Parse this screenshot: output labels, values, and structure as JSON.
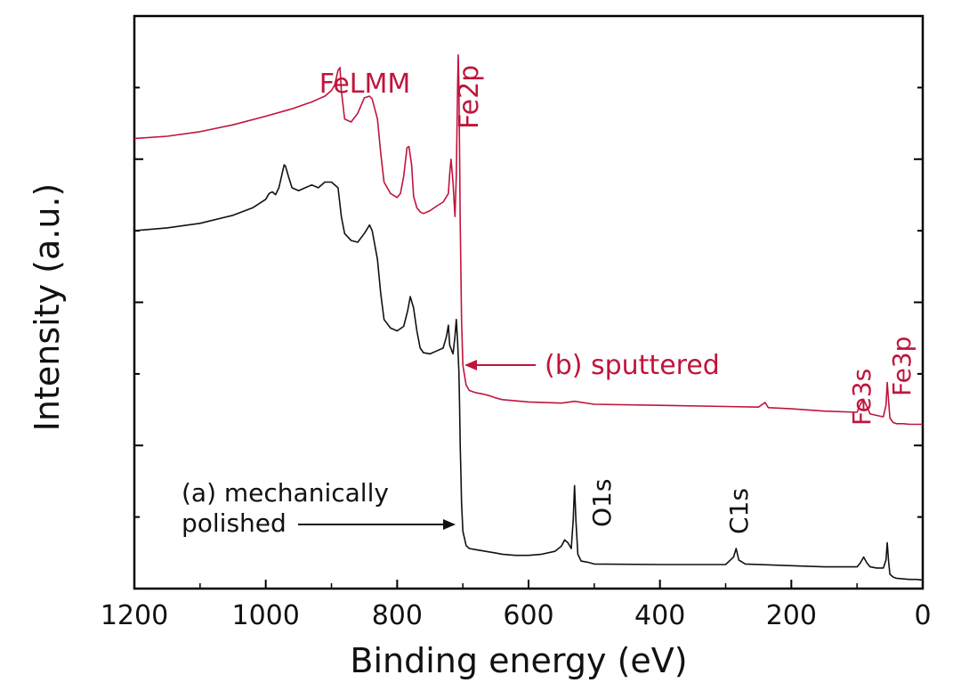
{
  "chart_data": {
    "type": "line",
    "title": "",
    "xlabel": "Binding energy (eV)",
    "ylabel": "Intensity (a.u.)",
    "xlim": [
      1200,
      0
    ],
    "ylim": [
      0,
      1
    ],
    "x_reversed": true,
    "x_ticks": [
      1200,
      1000,
      800,
      600,
      400,
      200,
      0
    ],
    "y_tick_labels_shown": false,
    "grid": false,
    "series": [
      {
        "name": "(b) sputtered",
        "color": "#c0143c",
        "x": [
          1200,
          1150,
          1100,
          1050,
          1000,
          960,
          940,
          930,
          920,
          910,
          900,
          895,
          890,
          887,
          885,
          880,
          870,
          860,
          850,
          842,
          838,
          830,
          825,
          820,
          810,
          800,
          795,
          790,
          785,
          782,
          778,
          775,
          770,
          765,
          760,
          750,
          740,
          730,
          722,
          720,
          718,
          715,
          712,
          710,
          708,
          707,
          706,
          705,
          704,
          702,
          700,
          695,
          690,
          680,
          670,
          660,
          650,
          640,
          600,
          550,
          530,
          500,
          400,
          300,
          250,
          240,
          235,
          200,
          150,
          100,
          95,
          90,
          85,
          80,
          60,
          56,
          54,
          52,
          50,
          45,
          40,
          30,
          20,
          10,
          0
        ],
        "y": [
          0.786,
          0.79,
          0.798,
          0.81,
          0.825,
          0.838,
          0.846,
          0.85,
          0.855,
          0.86,
          0.87,
          0.88,
          0.905,
          0.91,
          0.87,
          0.82,
          0.815,
          0.83,
          0.857,
          0.86,
          0.855,
          0.82,
          0.76,
          0.71,
          0.69,
          0.683,
          0.69,
          0.72,
          0.77,
          0.772,
          0.74,
          0.685,
          0.665,
          0.658,
          0.655,
          0.66,
          0.668,
          0.675,
          0.69,
          0.725,
          0.75,
          0.71,
          0.65,
          0.72,
          0.88,
          0.932,
          0.88,
          0.76,
          0.64,
          0.47,
          0.39,
          0.355,
          0.346,
          0.342,
          0.34,
          0.337,
          0.333,
          0.33,
          0.326,
          0.324,
          0.327,
          0.322,
          0.32,
          0.318,
          0.317,
          0.325,
          0.316,
          0.314,
          0.31,
          0.308,
          0.322,
          0.33,
          0.318,
          0.305,
          0.3,
          0.32,
          0.36,
          0.328,
          0.298,
          0.29,
          0.288,
          0.288,
          0.287,
          0.287,
          0.287
        ]
      },
      {
        "name": "(a) mechanically polished",
        "color": "#111111",
        "x": [
          1200,
          1150,
          1100,
          1050,
          1020,
          1000,
          995,
          990,
          985,
          980,
          975,
          972,
          970,
          965,
          960,
          950,
          940,
          930,
          920,
          910,
          900,
          890,
          885,
          880,
          870,
          860,
          850,
          842,
          838,
          830,
          825,
          820,
          810,
          800,
          790,
          784,
          780,
          775,
          770,
          765,
          760,
          750,
          740,
          730,
          725,
          722,
          720,
          715,
          712,
          710,
          708,
          706,
          705,
          704,
          703,
          702,
          700,
          695,
          690,
          680,
          670,
          660,
          650,
          640,
          620,
          600,
          580,
          560,
          550,
          545,
          540,
          535,
          532,
          530,
          528,
          525,
          520,
          510,
          500,
          400,
          300,
          288,
          284,
          280,
          270,
          200,
          150,
          100,
          95,
          90,
          85,
          80,
          70,
          60,
          56,
          54,
          52,
          50,
          45,
          40,
          30,
          20,
          10,
          0
        ],
        "y": [
          0.625,
          0.63,
          0.638,
          0.652,
          0.665,
          0.68,
          0.69,
          0.693,
          0.688,
          0.7,
          0.725,
          0.74,
          0.738,
          0.718,
          0.7,
          0.695,
          0.7,
          0.705,
          0.7,
          0.71,
          0.71,
          0.7,
          0.65,
          0.62,
          0.608,
          0.605,
          0.62,
          0.635,
          0.625,
          0.575,
          0.515,
          0.47,
          0.455,
          0.45,
          0.458,
          0.485,
          0.51,
          0.49,
          0.45,
          0.42,
          0.412,
          0.41,
          0.415,
          0.42,
          0.44,
          0.46,
          0.425,
          0.41,
          0.44,
          0.47,
          0.43,
          0.38,
          0.32,
          0.25,
          0.2,
          0.15,
          0.1,
          0.075,
          0.07,
          0.068,
          0.066,
          0.064,
          0.062,
          0.06,
          0.058,
          0.058,
          0.06,
          0.065,
          0.074,
          0.085,
          0.08,
          0.07,
          0.12,
          0.18,
          0.12,
          0.06,
          0.048,
          0.046,
          0.043,
          0.042,
          0.042,
          0.055,
          0.07,
          0.05,
          0.043,
          0.04,
          0.038,
          0.038,
          0.045,
          0.055,
          0.045,
          0.038,
          0.036,
          0.036,
          0.05,
          0.08,
          0.048,
          0.025,
          0.02,
          0.018,
          0.017,
          0.016,
          0.016,
          0.015
        ]
      }
    ],
    "annotations": [
      {
        "text": "FeLMM",
        "color": "#c0143c"
      },
      {
        "text": "Fe2p",
        "color": "#c0143c"
      },
      {
        "text": "(b) sputtered",
        "color": "#c0143c"
      },
      {
        "text": "Fe3s",
        "color": "#c0143c"
      },
      {
        "text": "Fe3p",
        "color": "#c0143c"
      },
      {
        "text": "O1s",
        "color": "#111111"
      },
      {
        "text": "C1s",
        "color": "#111111"
      },
      {
        "text": "(a) mechanically",
        "color": "#111111"
      },
      {
        "text": "polished",
        "color": "#111111"
      }
    ]
  }
}
